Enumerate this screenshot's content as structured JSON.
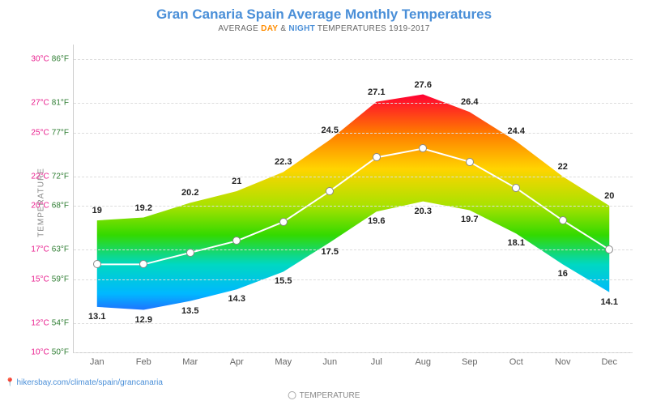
{
  "title": "Gran Canaria Spain Average Monthly Temperatures",
  "subtitle_prefix": "AVERAGE ",
  "subtitle_day": "DAY",
  "subtitle_and": " & ",
  "subtitle_night": "NIGHT",
  "subtitle_suffix": " TEMPERATURES 1919-2017",
  "ylabel": "TEMPERATURE",
  "legend_label": "TEMPERATURE",
  "attribution": "hikersbay.com/climate/spain/grancanaria",
  "chart": {
    "type": "area-range-with-line",
    "months": [
      "Jan",
      "Feb",
      "Mar",
      "Apr",
      "May",
      "Jun",
      "Jul",
      "Aug",
      "Sep",
      "Oct",
      "Nov",
      "Dec"
    ],
    "high": [
      19,
      19.2,
      20.2,
      21,
      22.3,
      24.5,
      27.1,
      27.6,
      26.4,
      24.4,
      22,
      20
    ],
    "low": [
      13.1,
      12.9,
      13.5,
      14.3,
      15.5,
      17.5,
      19.6,
      20.3,
      19.7,
      18.1,
      16,
      14.1
    ],
    "avg": [
      16.0,
      16.0,
      16.8,
      17.6,
      18.9,
      21.0,
      23.3,
      23.9,
      23.0,
      21.2,
      19.0,
      17.0
    ],
    "ymin": 10,
    "ymax": 31,
    "yticks_c": [
      10,
      12,
      15,
      17,
      20,
      22,
      25,
      27,
      30
    ],
    "yticks_f": [
      50,
      54,
      59,
      63,
      68,
      72,
      77,
      81,
      86
    ],
    "grid_color": "#dddddd",
    "gradient_stops": [
      {
        "t": 27.6,
        "color": "#ff0033"
      },
      {
        "t": 25.0,
        "color": "#ff7a00"
      },
      {
        "t": 22.5,
        "color": "#ffd400"
      },
      {
        "t": 20.0,
        "color": "#a9e200"
      },
      {
        "t": 18.0,
        "color": "#33d900"
      },
      {
        "t": 16.0,
        "color": "#00d8c2"
      },
      {
        "t": 14.0,
        "color": "#00b8ff"
      },
      {
        "t": 12.9,
        "color": "#1e74ff"
      }
    ],
    "line_color": "#ffffff",
    "marker_border": "#888888",
    "marker_fill": "#ffffff",
    "tick_color_c": "#e91e8e",
    "tick_color_f": "#2e7d32",
    "title_color": "#4a8fd8",
    "title_fontsize": 17,
    "label_fontsize": 11,
    "tick_fontsize": 10
  }
}
